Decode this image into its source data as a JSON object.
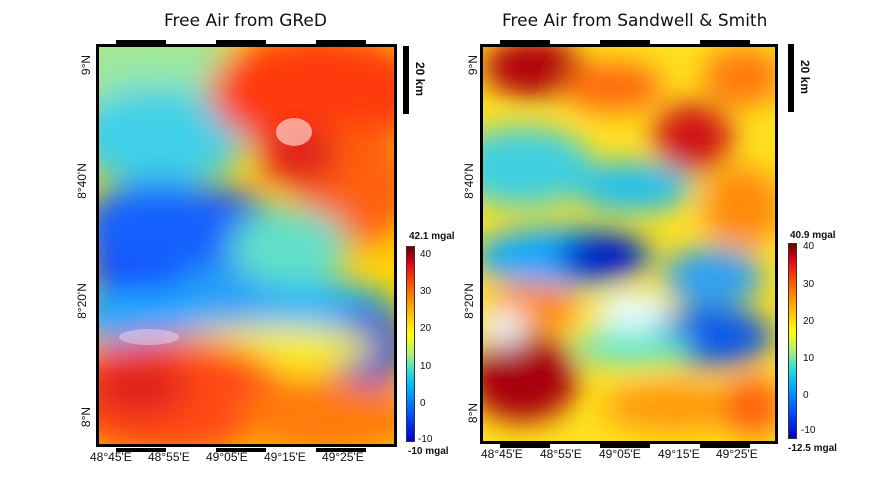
{
  "maps": [
    {
      "id": "gred",
      "title": "Free Air from GReD",
      "x_ticks": [
        "48°45'E",
        "48°55'E",
        "49°05'E",
        "49°15'E",
        "49°25'E"
      ],
      "y_ticks": [
        "9°N",
        "8°40'N",
        "8°20'N",
        "8°N"
      ],
      "scalebar_label": "20 km",
      "colorbar": {
        "max_label": "42.1 mgal",
        "min_label": "-10 mgal",
        "ticks": [
          "40",
          "30",
          "20",
          "10",
          "0",
          "-10"
        ],
        "unit": "mgal",
        "range": [
          -10,
          42.1
        ]
      }
    },
    {
      "id": "sandwell-smith",
      "title": "Free Air from Sandwell & Smith",
      "x_ticks": [
        "48°45'E",
        "48°55'E",
        "49°05'E",
        "49°15'E",
        "49°25'E"
      ],
      "y_ticks": [
        "9°N",
        "8°40'N",
        "8°20'N",
        "8°N"
      ],
      "scalebar_label": "20 km",
      "colorbar": {
        "max_label": "40.9 mgal",
        "min_label": "-12.5 mgal",
        "ticks": [
          "40",
          "30",
          "20",
          "10",
          "0",
          "-10"
        ],
        "unit": "mgal",
        "range": [
          -12.5,
          40.9
        ]
      }
    }
  ],
  "colors": {
    "very_high": "#6e0000",
    "high": "#e0001e",
    "mid_high": "#ff5a00",
    "mid": "#ffff00",
    "low_mid": "#00b4ff",
    "low": "#0044ff",
    "very_low": "#0000c8"
  }
}
